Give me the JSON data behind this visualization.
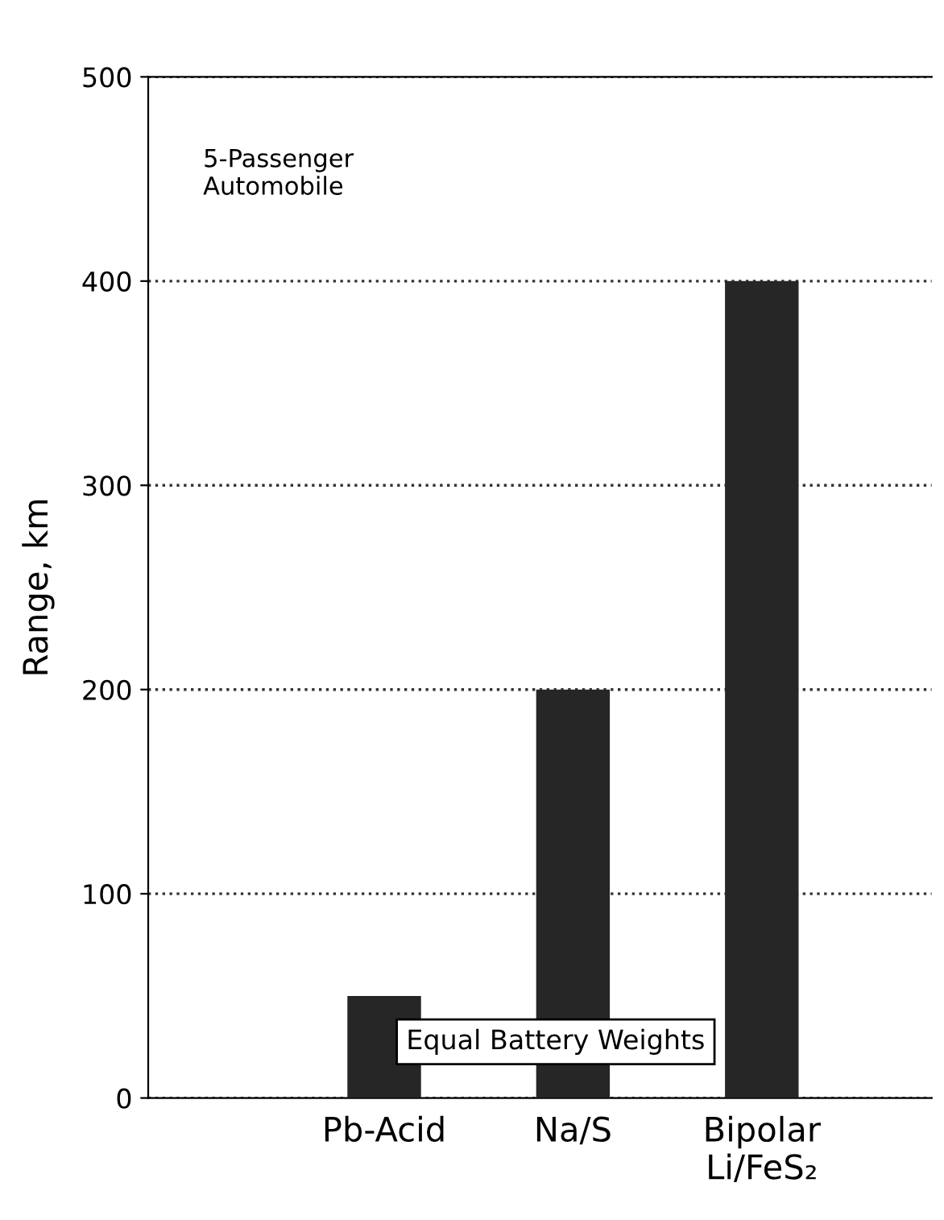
{
  "chart_data": {
    "type": "bar",
    "ylabel": "Range, km",
    "categories": [
      "Pb-Acid",
      "Na/S",
      "Bipolar\nLi/FeS₂"
    ],
    "values": [
      50,
      200,
      400
    ],
    "color": "#262626",
    "ylim": [
      0,
      500
    ],
    "yticks": [
      0,
      100,
      200,
      300,
      400,
      500
    ],
    "grid": "y",
    "annotations": [
      "5-Passenger\nAutomobile",
      "Equal Battery Weights"
    ]
  }
}
